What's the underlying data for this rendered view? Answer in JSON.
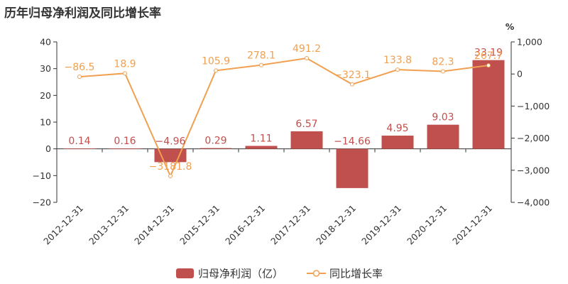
{
  "page": {
    "title": "历年归母净利润及同比增长率"
  },
  "colors": {
    "bar": "#c0504d",
    "line": "#f0a050",
    "axis": "#333333"
  },
  "chart_data": {
    "type": "bar",
    "title": "历年归母净利润及同比增长率",
    "categories": [
      "2012-12-31",
      "2013-12-31",
      "2014-12-31",
      "2015-12-31",
      "2016-12-31",
      "2017-12-31",
      "2018-12-31",
      "2019-12-31",
      "2020-12-31",
      "2021-12-31"
    ],
    "series": [
      {
        "name": "归母净利润（亿）",
        "type": "bar",
        "axis": "left",
        "values": [
          0.14,
          0.16,
          -4.96,
          0.29,
          1.11,
          6.57,
          -14.66,
          4.95,
          9.03,
          33.19
        ],
        "labels": [
          "0.14",
          "0.16",
          "−4.96",
          "0.29",
          "1.11",
          "6.57",
          "−14.66",
          "4.95",
          "9.03",
          "33.19"
        ]
      },
      {
        "name": "同比增长率",
        "type": "line",
        "axis": "right",
        "values": [
          -86.5,
          18.9,
          -3181.8,
          105.9,
          278.1,
          491.2,
          -323.1,
          133.8,
          82.3,
          267.7
        ],
        "labels": [
          "−86.5",
          "18.9",
          "−3181.8",
          "105.9",
          "278.1",
          "491.2",
          "−323.1",
          "133.8",
          "82.3",
          "267.7"
        ]
      }
    ],
    "left_axis": {
      "ylim": [
        -20,
        40
      ],
      "ticks": [
        -20,
        -10,
        0,
        10,
        20,
        30,
        40
      ],
      "tick_labels": [
        "−20",
        "−10",
        "0",
        "10",
        "20",
        "30",
        "40"
      ]
    },
    "right_axis": {
      "ylabel": "%",
      "ylim": [
        -4000,
        1000
      ],
      "ticks": [
        -4000,
        -3000,
        -2000,
        -1000,
        0,
        1000
      ],
      "tick_labels": [
        "−4,000",
        "−3,000",
        "−2,000",
        "−1,000",
        "0",
        "1,000"
      ]
    },
    "legend": {
      "position": "bottom-center"
    },
    "grid": false
  }
}
